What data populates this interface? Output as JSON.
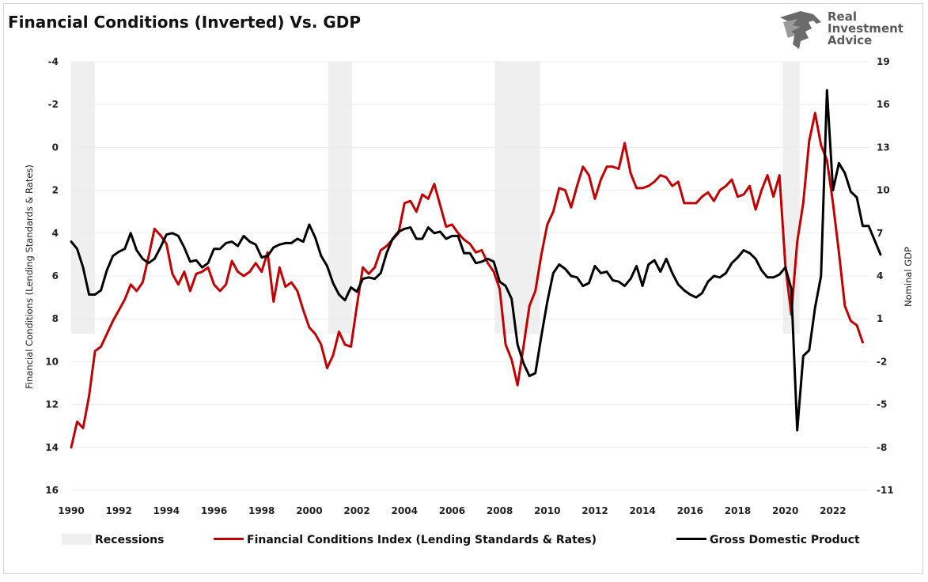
{
  "title": "Financial Conditions (Inverted) Vs. GDP",
  "logo": {
    "line1": "Real",
    "line2": "Investment",
    "line3": "Advice"
  },
  "chart_data": {
    "type": "line",
    "left_axis": {
      "label": "Financial Conditions (Lending Standards & Rates)",
      "inverted": true,
      "range": [
        -4,
        16
      ],
      "ticks": [
        "-4",
        "-2",
        "0",
        "2",
        "4",
        "6",
        "8",
        "10",
        "12",
        "14",
        "16"
      ]
    },
    "right_axis": {
      "label": "Nominal GDP",
      "range": [
        -11,
        19
      ],
      "ticks": [
        "19",
        "16",
        "13",
        "10",
        "7",
        "4",
        "1",
        "-2",
        "-5",
        "-8",
        "-11"
      ]
    },
    "x_axis": {
      "range": [
        1990,
        2023.5
      ],
      "ticks": [
        "1990",
        "1992",
        "1994",
        "1996",
        "1998",
        "2000",
        "2002",
        "2004",
        "2006",
        "2008",
        "2010",
        "2012",
        "2014",
        "2016",
        "2018",
        "2020",
        "2022"
      ]
    },
    "recessions": [
      [
        1990.0,
        1991.0
      ],
      [
        2000.8,
        2001.8
      ],
      [
        2007.8,
        2009.7
      ],
      [
        2019.9,
        2020.6
      ]
    ],
    "series": [
      {
        "name": "Financial Conditions Index (Lending Standards & Rates)",
        "axis": "left",
        "color": "#c00000",
        "points": [
          [
            1990.0,
            14.0
          ],
          [
            1990.25,
            12.8
          ],
          [
            1990.5,
            13.1
          ],
          [
            1990.75,
            11.6
          ],
          [
            1991.0,
            9.5
          ],
          [
            1991.25,
            9.3
          ],
          [
            1991.5,
            8.7
          ],
          [
            1991.75,
            8.1
          ],
          [
            1992.0,
            7.6
          ],
          [
            1992.25,
            7.1
          ],
          [
            1992.5,
            6.4
          ],
          [
            1992.75,
            6.7
          ],
          [
            1993.0,
            6.3
          ],
          [
            1993.25,
            5.1
          ],
          [
            1993.5,
            3.8
          ],
          [
            1993.75,
            4.1
          ],
          [
            1994.0,
            4.5
          ],
          [
            1994.25,
            5.9
          ],
          [
            1994.5,
            6.4
          ],
          [
            1994.75,
            5.8
          ],
          [
            1995.0,
            6.7
          ],
          [
            1995.25,
            5.9
          ],
          [
            1995.5,
            5.8
          ],
          [
            1995.75,
            5.6
          ],
          [
            1996.0,
            6.4
          ],
          [
            1996.25,
            6.7
          ],
          [
            1996.5,
            6.4
          ],
          [
            1996.75,
            5.3
          ],
          [
            1997.0,
            5.8
          ],
          [
            1997.25,
            6.0
          ],
          [
            1997.5,
            5.8
          ],
          [
            1997.75,
            5.4
          ],
          [
            1998.0,
            5.8
          ],
          [
            1998.25,
            4.9
          ],
          [
            1998.5,
            7.2
          ],
          [
            1998.75,
            5.6
          ],
          [
            1999.0,
            6.5
          ],
          [
            1999.25,
            6.3
          ],
          [
            1999.5,
            6.7
          ],
          [
            1999.75,
            7.6
          ],
          [
            2000.0,
            8.4
          ],
          [
            2000.25,
            8.7
          ],
          [
            2000.5,
            9.2
          ],
          [
            2000.75,
            10.3
          ],
          [
            2001.0,
            9.7
          ],
          [
            2001.25,
            8.6
          ],
          [
            2001.5,
            9.2
          ],
          [
            2001.75,
            9.3
          ],
          [
            2002.0,
            7.4
          ],
          [
            2002.25,
            5.6
          ],
          [
            2002.5,
            5.9
          ],
          [
            2002.75,
            5.6
          ],
          [
            2003.0,
            4.8
          ],
          [
            2003.25,
            4.6
          ],
          [
            2003.5,
            4.3
          ],
          [
            2003.75,
            4.0
          ],
          [
            2004.0,
            2.6
          ],
          [
            2004.25,
            2.5
          ],
          [
            2004.5,
            3.0
          ],
          [
            2004.75,
            2.2
          ],
          [
            2005.0,
            2.4
          ],
          [
            2005.25,
            1.7
          ],
          [
            2005.5,
            2.7
          ],
          [
            2005.75,
            3.7
          ],
          [
            2006.0,
            3.6
          ],
          [
            2006.25,
            4.0
          ],
          [
            2006.5,
            4.3
          ],
          [
            2006.75,
            4.5
          ],
          [
            2007.0,
            4.9
          ],
          [
            2007.25,
            4.8
          ],
          [
            2007.5,
            5.4
          ],
          [
            2007.75,
            5.8
          ],
          [
            2008.0,
            6.6
          ],
          [
            2008.25,
            9.2
          ],
          [
            2008.5,
            9.9
          ],
          [
            2008.75,
            11.1
          ],
          [
            2009.0,
            9.3
          ],
          [
            2009.25,
            7.4
          ],
          [
            2009.5,
            6.7
          ],
          [
            2009.75,
            5.0
          ],
          [
            2010.0,
            3.6
          ],
          [
            2010.25,
            3.0
          ],
          [
            2010.5,
            1.9
          ],
          [
            2010.75,
            2.0
          ],
          [
            2011.0,
            2.8
          ],
          [
            2011.25,
            1.8
          ],
          [
            2011.5,
            0.9
          ],
          [
            2011.75,
            1.3
          ],
          [
            2012.0,
            2.4
          ],
          [
            2012.25,
            1.5
          ],
          [
            2012.5,
            0.9
          ],
          [
            2012.75,
            0.9
          ],
          [
            2013.0,
            1.0
          ],
          [
            2013.25,
            -0.2
          ],
          [
            2013.5,
            1.2
          ],
          [
            2013.75,
            1.9
          ],
          [
            2014.0,
            1.9
          ],
          [
            2014.25,
            1.8
          ],
          [
            2014.5,
            1.6
          ],
          [
            2014.75,
            1.3
          ],
          [
            2015.0,
            1.4
          ],
          [
            2015.25,
            1.8
          ],
          [
            2015.5,
            1.6
          ],
          [
            2015.75,
            2.6
          ],
          [
            2016.0,
            2.6
          ],
          [
            2016.25,
            2.6
          ],
          [
            2016.5,
            2.3
          ],
          [
            2016.75,
            2.1
          ],
          [
            2017.0,
            2.5
          ],
          [
            2017.25,
            2.0
          ],
          [
            2017.5,
            1.8
          ],
          [
            2017.75,
            1.5
          ],
          [
            2018.0,
            2.3
          ],
          [
            2018.25,
            2.2
          ],
          [
            2018.5,
            1.8
          ],
          [
            2018.75,
            2.9
          ],
          [
            2019.0,
            2.0
          ],
          [
            2019.25,
            1.3
          ],
          [
            2019.5,
            2.3
          ],
          [
            2019.75,
            1.3
          ],
          [
            2020.0,
            5.5
          ],
          [
            2020.25,
            7.8
          ],
          [
            2020.5,
            4.4
          ],
          [
            2020.75,
            2.6
          ],
          [
            2021.0,
            -0.3
          ],
          [
            2021.25,
            -1.6
          ],
          [
            2021.5,
            -0.1
          ],
          [
            2021.75,
            0.6
          ],
          [
            2022.0,
            2.6
          ],
          [
            2022.25,
            4.9
          ],
          [
            2022.5,
            7.4
          ],
          [
            2022.75,
            8.1
          ],
          [
            2023.0,
            8.3
          ],
          [
            2023.25,
            9.1
          ]
        ]
      },
      {
        "name": "Gross Domestic Product",
        "axis": "right",
        "color": "#000000",
        "points": [
          [
            1990.0,
            6.4
          ],
          [
            1990.25,
            5.9
          ],
          [
            1990.5,
            4.6
          ],
          [
            1990.75,
            2.7
          ],
          [
            1991.0,
            2.7
          ],
          [
            1991.25,
            3.0
          ],
          [
            1991.5,
            4.4
          ],
          [
            1991.75,
            5.4
          ],
          [
            1992.0,
            5.7
          ],
          [
            1992.25,
            5.9
          ],
          [
            1992.5,
            7.0
          ],
          [
            1992.75,
            5.8
          ],
          [
            1993.0,
            5.2
          ],
          [
            1993.25,
            4.9
          ],
          [
            1993.5,
            5.2
          ],
          [
            1993.75,
            6.0
          ],
          [
            1994.0,
            6.9
          ],
          [
            1994.25,
            7.0
          ],
          [
            1994.5,
            6.8
          ],
          [
            1994.75,
            6.0
          ],
          [
            1995.0,
            5.0
          ],
          [
            1995.25,
            5.1
          ],
          [
            1995.5,
            4.6
          ],
          [
            1995.75,
            4.9
          ],
          [
            1996.0,
            5.9
          ],
          [
            1996.25,
            5.9
          ],
          [
            1996.5,
            6.3
          ],
          [
            1996.75,
            6.4
          ],
          [
            1997.0,
            6.1
          ],
          [
            1997.25,
            6.8
          ],
          [
            1997.5,
            6.4
          ],
          [
            1997.75,
            6.2
          ],
          [
            1998.0,
            5.3
          ],
          [
            1998.25,
            5.4
          ],
          [
            1998.5,
            6.0
          ],
          [
            1998.75,
            6.2
          ],
          [
            1999.0,
            6.3
          ],
          [
            1999.25,
            6.3
          ],
          [
            1999.5,
            6.6
          ],
          [
            1999.75,
            6.4
          ],
          [
            2000.0,
            7.6
          ],
          [
            2000.25,
            6.7
          ],
          [
            2000.5,
            5.4
          ],
          [
            2000.75,
            4.7
          ],
          [
            2001.0,
            3.5
          ],
          [
            2001.25,
            2.7
          ],
          [
            2001.5,
            2.3
          ],
          [
            2001.75,
            3.2
          ],
          [
            2002.0,
            2.9
          ],
          [
            2002.25,
            3.8
          ],
          [
            2002.5,
            3.9
          ],
          [
            2002.75,
            3.8
          ],
          [
            2003.0,
            4.2
          ],
          [
            2003.25,
            5.6
          ],
          [
            2003.5,
            6.6
          ],
          [
            2003.75,
            7.1
          ],
          [
            2004.0,
            7.3
          ],
          [
            2004.25,
            7.4
          ],
          [
            2004.5,
            6.6
          ],
          [
            2004.75,
            6.6
          ],
          [
            2005.0,
            7.4
          ],
          [
            2005.25,
            7.0
          ],
          [
            2005.5,
            7.1
          ],
          [
            2005.75,
            6.6
          ],
          [
            2006.0,
            6.8
          ],
          [
            2006.25,
            6.8
          ],
          [
            2006.5,
            5.6
          ],
          [
            2006.75,
            5.6
          ],
          [
            2007.0,
            4.9
          ],
          [
            2007.25,
            5.0
          ],
          [
            2007.5,
            5.2
          ],
          [
            2007.75,
            5.0
          ],
          [
            2008.0,
            3.6
          ],
          [
            2008.25,
            3.3
          ],
          [
            2008.5,
            2.4
          ],
          [
            2008.75,
            -0.8
          ],
          [
            2009.0,
            -2.1
          ],
          [
            2009.25,
            -3.0
          ],
          [
            2009.5,
            -2.8
          ],
          [
            2009.75,
            -0.2
          ],
          [
            2010.0,
            2.2
          ],
          [
            2010.25,
            4.2
          ],
          [
            2010.5,
            4.8
          ],
          [
            2010.75,
            4.5
          ],
          [
            2011.0,
            4.0
          ],
          [
            2011.25,
            3.9
          ],
          [
            2011.5,
            3.3
          ],
          [
            2011.75,
            3.5
          ],
          [
            2012.0,
            4.7
          ],
          [
            2012.25,
            4.2
          ],
          [
            2012.5,
            4.3
          ],
          [
            2012.75,
            3.7
          ],
          [
            2013.0,
            3.6
          ],
          [
            2013.25,
            3.3
          ],
          [
            2013.5,
            3.8
          ],
          [
            2013.75,
            4.7
          ],
          [
            2014.0,
            3.3
          ],
          [
            2014.25,
            4.8
          ],
          [
            2014.5,
            5.1
          ],
          [
            2014.75,
            4.3
          ],
          [
            2015.0,
            5.2
          ],
          [
            2015.25,
            4.2
          ],
          [
            2015.5,
            3.4
          ],
          [
            2015.75,
            3.0
          ],
          [
            2016.0,
            2.7
          ],
          [
            2016.25,
            2.5
          ],
          [
            2016.5,
            2.8
          ],
          [
            2016.75,
            3.6
          ],
          [
            2017.0,
            4.0
          ],
          [
            2017.25,
            3.9
          ],
          [
            2017.5,
            4.2
          ],
          [
            2017.75,
            4.9
          ],
          [
            2018.0,
            5.3
          ],
          [
            2018.25,
            5.8
          ],
          [
            2018.5,
            5.6
          ],
          [
            2018.75,
            5.2
          ],
          [
            2019.0,
            4.4
          ],
          [
            2019.25,
            3.9
          ],
          [
            2019.5,
            3.9
          ],
          [
            2019.75,
            4.1
          ],
          [
            2020.0,
            4.6
          ],
          [
            2020.25,
            3.1
          ],
          [
            2020.5,
            -6.8
          ],
          [
            2020.75,
            -1.6
          ],
          [
            2021.0,
            -1.2
          ],
          [
            2021.25,
            1.8
          ],
          [
            2021.5,
            4.0
          ],
          [
            2021.75,
            17.0
          ],
          [
            2022.0,
            10.0
          ],
          [
            2022.25,
            11.9
          ],
          [
            2022.5,
            11.2
          ],
          [
            2022.75,
            9.9
          ],
          [
            2023.0,
            9.5
          ],
          [
            2023.25,
            7.5
          ],
          [
            2023.5,
            7.5
          ],
          [
            2023.75,
            6.5
          ],
          [
            2024.0,
            5.5
          ]
        ]
      }
    ],
    "legend": {
      "placement": "bottom",
      "items": [
        "Recessions",
        "Financial Conditions Index (Lending Standards & Rates)",
        "Gross Domestic Product"
      ]
    }
  }
}
